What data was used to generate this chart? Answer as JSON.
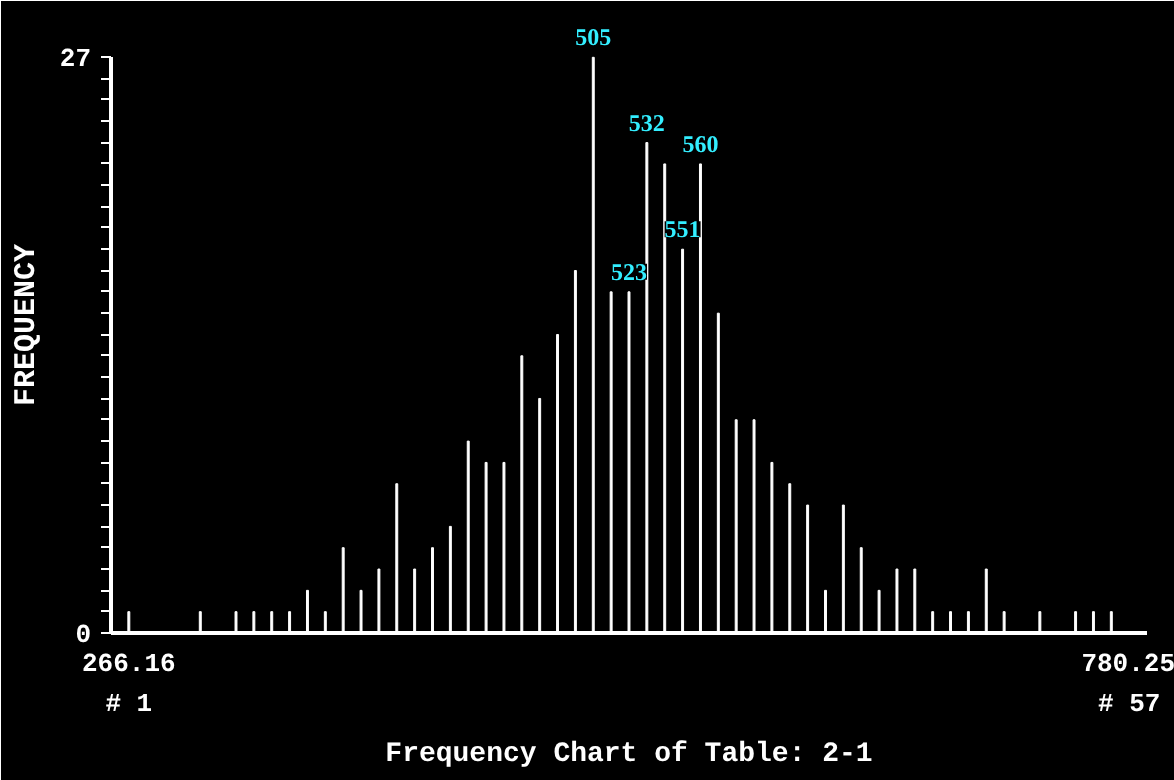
{
  "chart_data": {
    "type": "bar",
    "title": "Frequency Chart of Table: 2-1",
    "ylabel": "FREQUENCY",
    "color": "#ffffff",
    "x": [
      266.16,
      275.34,
      284.52,
      293.7,
      302.88,
      312.06,
      321.24,
      330.42,
      339.6,
      348.78,
      357.96,
      367.14,
      376.32,
      385.5,
      394.68,
      403.86,
      413.04,
      422.22,
      431.4,
      440.58,
      449.76,
      458.94,
      468.12,
      477.3,
      486.48,
      495.66,
      504.84,
      514.02,
      523.2,
      532.38,
      541.56,
      550.74,
      559.92,
      569.1,
      578.28,
      587.46,
      596.64,
      605.82,
      615.0,
      624.18,
      633.36,
      642.54,
      651.72,
      660.9,
      670.08,
      679.26,
      688.44,
      697.62,
      706.8,
      715.98,
      725.16,
      734.34,
      743.52,
      752.7,
      761.88,
      771.06,
      780.25
    ],
    "values": [
      1,
      0,
      0,
      0,
      1,
      0,
      1,
      1,
      1,
      1,
      2,
      1,
      4,
      2,
      3,
      7,
      3,
      4,
      5,
      9,
      8,
      8,
      13,
      11,
      14,
      17,
      27,
      16,
      16,
      23,
      22,
      18,
      22,
      15,
      10,
      10,
      8,
      7,
      6,
      2,
      6,
      4,
      2,
      3,
      3,
      1,
      1,
      1,
      3,
      1,
      0,
      1,
      0,
      1,
      1,
      1,
      0
    ],
    "xlim": [
      257.0,
      789.4
    ],
    "xticks": [
      266.16,
      780.25
    ],
    "ylim": [
      0,
      27
    ],
    "yticks": [
      0,
      {
        "value": 1,
        "label": null
      },
      {
        "value": 2,
        "label": null
      },
      {
        "value": 3,
        "label": null
      },
      {
        "value": 4,
        "label": null
      },
      {
        "value": 5,
        "label": null
      },
      {
        "value": 6,
        "label": null
      },
      {
        "value": 7,
        "label": null
      },
      {
        "value": 8,
        "label": null
      },
      {
        "value": 9,
        "label": null
      },
      {
        "value": 10,
        "label": null
      },
      {
        "value": 11,
        "label": null
      },
      {
        "value": 12,
        "label": null
      },
      {
        "value": 13,
        "label": null
      },
      {
        "value": 14,
        "label": null
      },
      {
        "value": 15,
        "label": null
      },
      {
        "value": 16,
        "label": null
      },
      {
        "value": 17,
        "label": null
      },
      {
        "value": 18,
        "label": null
      },
      {
        "value": 19,
        "label": null
      },
      {
        "value": 20,
        "label": null
      },
      {
        "value": 21,
        "label": null
      },
      {
        "value": 22,
        "label": null
      },
      {
        "value": 23,
        "label": null
      },
      {
        "value": 24,
        "label": null
      },
      {
        "value": 25,
        "label": null
      },
      {
        "value": 26,
        "label": null
      },
      27
    ],
    "annotations": [
      {
        "text": "505",
        "x": 504.84,
        "y": 27
      },
      {
        "text": "532",
        "x": 532.38,
        "y": 23
      },
      {
        "text": "560",
        "x": 559.92,
        "y": 22
      },
      {
        "text": "551",
        "x": 550.74,
        "y": 18
      },
      {
        "text": "523",
        "x": 523.2,
        "y": 16
      },
      "# 1",
      "# 57"
    ],
    "grid": false
  }
}
